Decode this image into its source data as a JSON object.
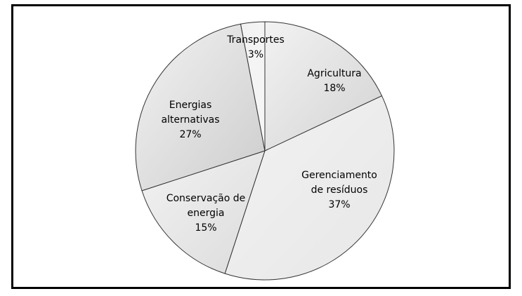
{
  "chart_data": {
    "type": "pie",
    "title": "",
    "slices": [
      {
        "label_lines": [
          "Agricultura"
        ],
        "value": 18,
        "value_label": "18%",
        "color": "#d3d3d3"
      },
      {
        "label_lines": [
          "Gerenciamento",
          "de resíduos"
        ],
        "value": 37,
        "value_label": "37%",
        "color": "#e7e7e7"
      },
      {
        "label_lines": [
          "Conservação de",
          "energia"
        ],
        "value": 15,
        "value_label": "15%",
        "color": "#dcdcdc"
      },
      {
        "label_lines": [
          "Energias",
          "alternativas"
        ],
        "value": 27,
        "value_label": "27%",
        "color": "#cdcdcd"
      },
      {
        "label_lines": [
          "Transportes"
        ],
        "value": 3,
        "value_label": "3%",
        "color": "#f6f6f6"
      }
    ],
    "start_angle_deg": 0,
    "direction": "clockwise",
    "slice_border_color": "#333333",
    "legend": "none"
  }
}
